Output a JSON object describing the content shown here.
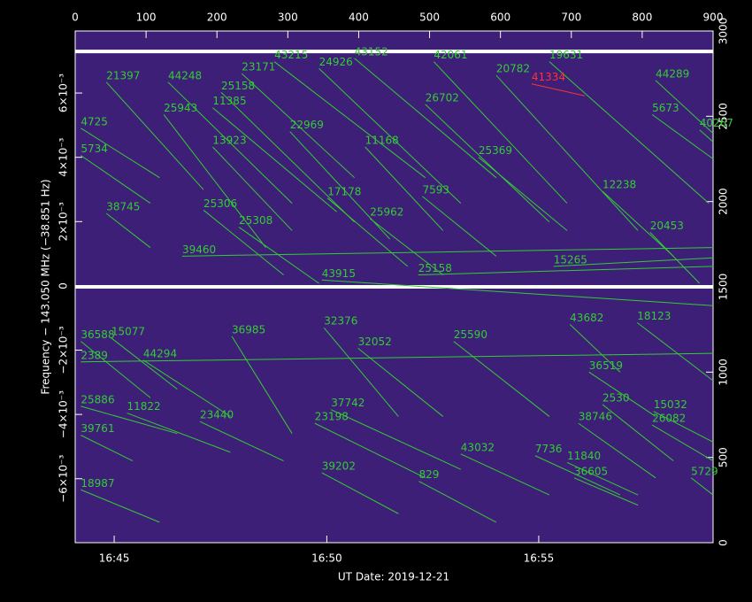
{
  "chart_data": {
    "type": "line",
    "xlabel": "UT Date: 2019-12-21",
    "ylabel": "Frequency − 143.050 MHz (−38.851 Hz)",
    "xlim": [
      0,
      900
    ],
    "ylim": [
      -0.00799,
      0.00793
    ],
    "y2lim": [
      0,
      3000
    ],
    "xticks": [
      {
        "value": 55,
        "label": "16:45"
      },
      {
        "value": 355,
        "label": "16:50"
      },
      {
        "value": 654,
        "label": "16:55"
      }
    ],
    "x2ticks": [
      0,
      100,
      200,
      300,
      400,
      500,
      600,
      700,
      800,
      900
    ],
    "yticks": [
      {
        "value": -0.006,
        "label": "−6×10⁻³"
      },
      {
        "value": -0.004,
        "label": "−4×10⁻³"
      },
      {
        "value": -0.002,
        "label": "−2×10⁻³"
      },
      0,
      {
        "value": 0.002,
        "label": "2×10⁻³"
      },
      {
        "value": 0.004,
        "label": "4×10⁻³"
      },
      {
        "value": 0.006,
        "label": "6×10⁻³"
      }
    ],
    "y2ticks": [
      0,
      500,
      1000,
      1500,
      2000,
      2500,
      3000
    ],
    "hlines": [
      2880,
      1500
    ],
    "series": [
      {
        "name": "21397",
        "color": "#33cc33",
        "axis": "y2",
        "x": [
          44,
          181
        ],
        "y": [
          2700,
          2070
        ]
      },
      {
        "name": "44248",
        "color": "#33cc33",
        "axis": "y2",
        "x": [
          131,
          306
        ],
        "y": [
          2700,
          1990
        ]
      },
      {
        "name": "43215",
        "color": "#33cc33",
        "axis": "y2",
        "x": [
          281,
          494
        ],
        "y": [
          2820,
          2140
        ]
      },
      {
        "name": "24926",
        "color": "#33cc33",
        "axis": "y2",
        "x": [
          344,
          544
        ],
        "y": [
          2780,
          1990
        ]
      },
      {
        "name": "43152",
        "color": "#33cc33",
        "axis": "y2",
        "x": [
          394,
          594
        ],
        "y": [
          2840,
          2140
        ]
      },
      {
        "name": "42061",
        "color": "#33cc33",
        "axis": "y2",
        "x": [
          506,
          694
        ],
        "y": [
          2820,
          1990
        ]
      },
      {
        "name": "20782",
        "color": "#33cc33",
        "axis": "y2",
        "x": [
          594,
          794
        ],
        "y": [
          2740,
          1830
        ]
      },
      {
        "name": "19631",
        "color": "#33cc33",
        "axis": "y2",
        "x": [
          669,
          894
        ],
        "y": [
          2820,
          1990
        ]
      },
      {
        "name": "44289",
        "color": "#33cc33",
        "axis": "y2",
        "x": [
          819,
          900
        ],
        "y": [
          2710,
          2400
        ]
      },
      {
        "name": "25158",
        "color": "#33cc33",
        "axis": "y2",
        "x": [
          206,
          394
        ],
        "y": [
          2640,
          1880
        ]
      },
      {
        "name": "11385",
        "color": "#33cc33",
        "axis": "y2",
        "x": [
          194,
          369
        ],
        "y": [
          2550,
          1940
        ]
      },
      {
        "name": "25943",
        "color": "#33cc33",
        "axis": "y2",
        "x": [
          125,
          269
        ],
        "y": [
          2510,
          1730
        ]
      },
      {
        "name": "22969",
        "color": "#33cc33",
        "axis": "y2",
        "x": [
          303,
          444
        ],
        "y": [
          2410,
          1780
        ]
      },
      {
        "name": "13923",
        "color": "#33cc33",
        "axis": "y2",
        "x": [
          194,
          306
        ],
        "y": [
          2320,
          1830
        ]
      },
      {
        "name": "11168",
        "color": "#33cc33",
        "axis": "y2",
        "x": [
          409,
          519
        ],
        "y": [
          2320,
          1830
        ]
      },
      {
        "name": "26702",
        "color": "#33cc33",
        "axis": "y2",
        "x": [
          494,
          669
        ],
        "y": [
          2570,
          1880
        ]
      },
      {
        "name": "25369",
        "color": "#33cc33",
        "axis": "y2",
        "x": [
          569,
          694
        ],
        "y": [
          2260,
          1830
        ]
      },
      {
        "name": "12238",
        "color": "#33cc33",
        "axis": "y2",
        "x": [
          744,
          844
        ],
        "y": [
          2060,
          1680
        ]
      },
      {
        "name": "17178",
        "color": "#33cc33",
        "axis": "y2",
        "x": [
          356,
          469
        ],
        "y": [
          2020,
          1620
        ]
      },
      {
        "name": "7593",
        "color": "#33cc33",
        "axis": "y2",
        "x": [
          490,
          594
        ],
        "y": [
          2030,
          1680
        ]
      },
      {
        "name": "25962",
        "color": "#33cc33",
        "axis": "y2",
        "x": [
          416,
          519
        ],
        "y": [
          1900,
          1570
        ]
      },
      {
        "name": "25306",
        "color": "#33cc33",
        "axis": "y2",
        "x": [
          181,
          294
        ],
        "y": [
          1950,
          1570
        ]
      },
      {
        "name": "25308",
        "color": "#33cc33",
        "axis": "y2",
        "x": [
          231,
          344
        ],
        "y": [
          1850,
          1520
        ]
      },
      {
        "name": "38745",
        "color": "#33cc33",
        "axis": "y2",
        "x": [
          44,
          106
        ],
        "y": [
          1930,
          1730
        ]
      },
      {
        "name": "20453",
        "color": "#33cc33",
        "axis": "y2",
        "x": [
          811,
          881
        ],
        "y": [
          1820,
          1520
        ]
      },
      {
        "name": "39460",
        "color": "#33cc33",
        "axis": "y2",
        "x": [
          151,
          900
        ],
        "y": [
          1680,
          1730
        ]
      },
      {
        "name": "25158",
        "color": "#33cc33",
        "axis": "y2",
        "x": [
          484,
          900
        ],
        "y": [
          1570,
          1620
        ]
      },
      {
        "name": "15265",
        "color": "#33cc33",
        "axis": "y2",
        "x": [
          675,
          900
        ],
        "y": [
          1620,
          1670
        ]
      },
      {
        "name": "43915",
        "color": "#33cc33",
        "axis": "y2",
        "x": [
          348,
          900
        ],
        "y": [
          1540,
          1390
        ]
      },
      {
        "name": "43682",
        "color": "#33cc33",
        "axis": "y2",
        "x": [
          698,
          769
        ],
        "y": [
          1280,
          1000
        ]
      },
      {
        "name": "18123",
        "color": "#33cc33",
        "axis": "y2",
        "x": [
          793,
          900
        ],
        "y": [
          1290,
          950
        ]
      },
      {
        "name": "32376",
        "color": "#33cc33",
        "axis": "y2",
        "x": [
          351,
          456
        ],
        "y": [
          1260,
          740
        ]
      },
      {
        "name": "36985",
        "color": "#33cc33",
        "axis": "y2",
        "x": [
          221,
          306
        ],
        "y": [
          1210,
          640
        ]
      },
      {
        "name": "36588",
        "color": "#33cc33",
        "axis": "y2",
        "x": [
          8,
          106
        ],
        "y": [
          1180,
          850
        ]
      },
      {
        "name": "15077",
        "color": "#33cc33",
        "axis": "y2",
        "x": [
          51,
          144
        ],
        "y": [
          1200,
          900
        ]
      },
      {
        "name": "32052",
        "color": "#33cc33",
        "axis": "y2",
        "x": [
          399,
          519
        ],
        "y": [
          1140,
          740
        ]
      },
      {
        "name": "25590",
        "color": "#33cc33",
        "axis": "y2",
        "x": [
          534,
          669
        ],
        "y": [
          1180,
          740
        ]
      },
      {
        "name": "44294",
        "color": "#33cc33",
        "axis": "y2",
        "x": [
          96,
          219
        ],
        "y": [
          1070,
          740
        ]
      },
      {
        "name": "2389",
        "color": "#33cc33",
        "axis": "y2",
        "x": [
          8,
          900
        ],
        "y": [
          1060,
          1110
        ]
      },
      {
        "name": "36519",
        "color": "#33cc33",
        "axis": "y2",
        "x": [
          725,
          819
        ],
        "y": [
          1000,
          740
        ]
      },
      {
        "name": "25886",
        "color": "#33cc33",
        "axis": "y2",
        "x": [
          8,
          144
        ],
        "y": [
          800,
          640
        ]
      },
      {
        "name": "11822",
        "color": "#33cc33",
        "axis": "y2",
        "x": [
          73,
          219
        ],
        "y": [
          760,
          530
        ]
      },
      {
        "name": "37742",
        "color": "#33cc33",
        "axis": "y2",
        "x": [
          361,
          544
        ],
        "y": [
          780,
          430
        ]
      },
      {
        "name": "2530",
        "color": "#33cc33",
        "axis": "y2",
        "x": [
          744,
          844
        ],
        "y": [
          810,
          480
        ]
      },
      {
        "name": "15032",
        "color": "#33cc33",
        "axis": "y2",
        "x": [
          816,
          900
        ],
        "y": [
          770,
          590
        ]
      },
      {
        "name": "23440",
        "color": "#33cc33",
        "axis": "y2",
        "x": [
          176,
          294
        ],
        "y": [
          710,
          480
        ]
      },
      {
        "name": "23198",
        "color": "#33cc33",
        "axis": "y2",
        "x": [
          338,
          494
        ],
        "y": [
          700,
          380
        ]
      },
      {
        "name": "38746",
        "color": "#33cc33",
        "axis": "y2",
        "x": [
          710,
          819
        ],
        "y": [
          700,
          380
        ]
      },
      {
        "name": "26082",
        "color": "#33cc33",
        "axis": "y2",
        "x": [
          814,
          900
        ],
        "y": [
          690,
          480
        ]
      },
      {
        "name": "39761",
        "color": "#33cc33",
        "axis": "y2",
        "x": [
          8,
          81
        ],
        "y": [
          630,
          480
        ]
      },
      {
        "name": "43032",
        "color": "#33cc33",
        "axis": "y2",
        "x": [
          544,
          669
        ],
        "y": [
          520,
          280
        ]
      },
      {
        "name": "7736",
        "color": "#33cc33",
        "axis": "y2",
        "x": [
          649,
          769
        ],
        "y": [
          510,
          280
        ]
      },
      {
        "name": "11840",
        "color": "#33cc33",
        "axis": "y2",
        "x": [
          694,
          794
        ],
        "y": [
          470,
          280
        ]
      },
      {
        "name": "39202",
        "color": "#33cc33",
        "axis": "y2",
        "x": [
          348,
          456
        ],
        "y": [
          410,
          170
        ]
      },
      {
        "name": "829",
        "color": "#33cc33",
        "axis": "y2",
        "x": [
          485,
          594
        ],
        "y": [
          360,
          120
        ]
      },
      {
        "name": "36605",
        "color": "#33cc33",
        "axis": "y2",
        "x": [
          704,
          794
        ],
        "y": [
          380,
          220
        ]
      },
      {
        "name": "5729",
        "color": "#33cc33",
        "axis": "y2",
        "x": [
          869,
          900
        ],
        "y": [
          380,
          280
        ]
      },
      {
        "name": "18987",
        "color": "#33cc33",
        "axis": "y2",
        "x": [
          8,
          119
        ],
        "y": [
          310,
          120
        ]
      },
      {
        "name": "40267",
        "color": "#33cc33",
        "axis": "y2",
        "x": [
          881,
          900
        ],
        "y": [
          2420,
          2350
        ]
      },
      {
        "name": "5673",
        "color": "#33cc33",
        "axis": "y2",
        "x": [
          814,
          900
        ],
        "y": [
          2510,
          2250
        ]
      },
      {
        "name": "5734",
        "color": "#33cc33",
        "axis": "y2",
        "x": [
          8,
          106
        ],
        "y": [
          2270,
          1990
        ]
      },
      {
        "name": "23171",
        "color": "#33cc33",
        "axis": "y2",
        "x": [
          235,
          394
        ],
        "y": [
          2750,
          2140
        ]
      },
      {
        "name": "4725",
        "color": "#33cc33",
        "axis": "y2",
        "x": [
          8,
          119
        ],
        "y": [
          2430,
          2140
        ]
      },
      {
        "name": "41334",
        "color": "#ff3333",
        "axis": "y2",
        "x": [
          644,
          719
        ],
        "y": [
          2690,
          2620
        ]
      }
    ]
  }
}
